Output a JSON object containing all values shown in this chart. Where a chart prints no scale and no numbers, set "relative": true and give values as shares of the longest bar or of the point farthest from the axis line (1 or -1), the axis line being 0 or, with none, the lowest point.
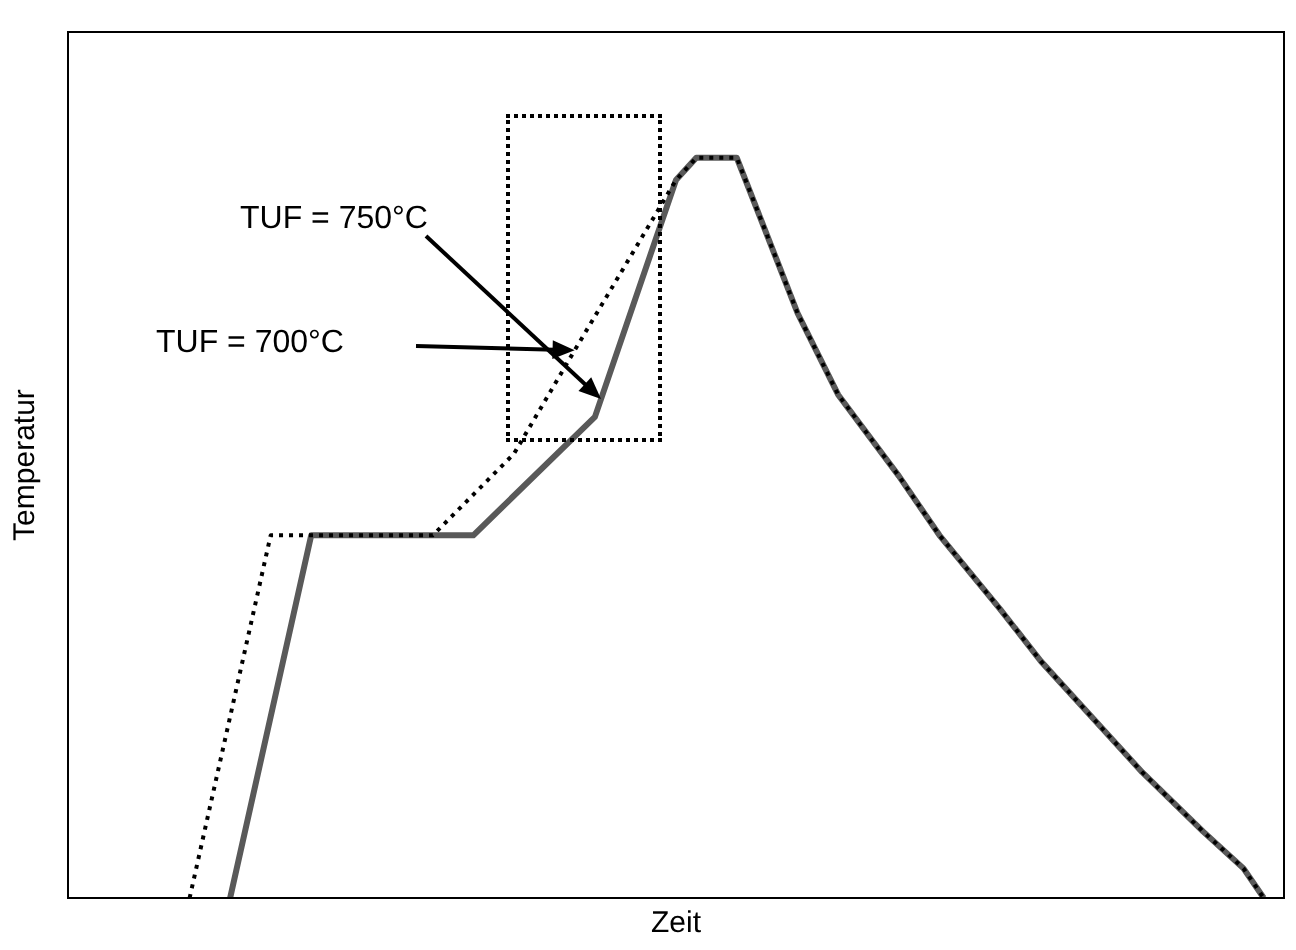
{
  "chart_data": {
    "type": "line",
    "relative": true,
    "xlabel": "Zeit",
    "ylabel": "Temperatur",
    "grid": false,
    "marker": "none",
    "categories": [
      null,
      null,
      null,
      null,
      null,
      null,
      null,
      null,
      null,
      null,
      null,
      null,
      null,
      null,
      null,
      null,
      null,
      null,
      null,
      null,
      null,
      null,
      null,
      null,
      null,
      null,
      null,
      null,
      null,
      null,
      null,
      null,
      null,
      null,
      null,
      null,
      null,
      null,
      null,
      null,
      null,
      null,
      null,
      null,
      null,
      null,
      null,
      null,
      null,
      null,
      null,
      null,
      null,
      null,
      null,
      null,
      null,
      null,
      null,
      null,
      null
    ],
    "annotations": [
      "TUF = 750°C",
      "TUF = 700°C"
    ],
    "series": [
      {
        "color": "#595959",
        "line_style": "solid",
        "values": [
          null,
          null,
          null,
          null,
          null,
          null,
          null,
          null,
          0,
          null,
          null,
          null,
          0.49,
          null,
          null,
          null,
          null,
          null,
          null,
          null,
          0.49,
          null,
          null,
          null,
          null,
          null,
          0.65,
          null,
          null,
          null,
          0.97,
          1,
          null,
          1,
          0.93,
          0.86,
          0.79,
          null,
          0.68,
          null,
          null,
          0.57,
          null,
          0.49,
          null,
          null,
          0.39,
          null,
          0.32,
          null,
          null,
          0.23,
          null,
          0.17,
          null,
          null,
          0.09,
          null,
          0.04,
          0,
          null
        ]
      },
      {
        "color": "#000000",
        "line_style": "dotted",
        "values": [
          null,
          null,
          null,
          null,
          null,
          null,
          0,
          null,
          null,
          null,
          0.49,
          null,
          null,
          null,
          null,
          null,
          null,
          null,
          0.49,
          null,
          null,
          null,
          0.6,
          null,
          null,
          0.74,
          null,
          null,
          null,
          null,
          0.97,
          1,
          null,
          1,
          0.93,
          0.86,
          0.79,
          null,
          0.68,
          null,
          null,
          0.57,
          null,
          0.49,
          null,
          null,
          0.39,
          null,
          0.32,
          null,
          null,
          0.23,
          null,
          0.17,
          null,
          null,
          0.09,
          null,
          0.04,
          0,
          null
        ]
      }
    ]
  }
}
